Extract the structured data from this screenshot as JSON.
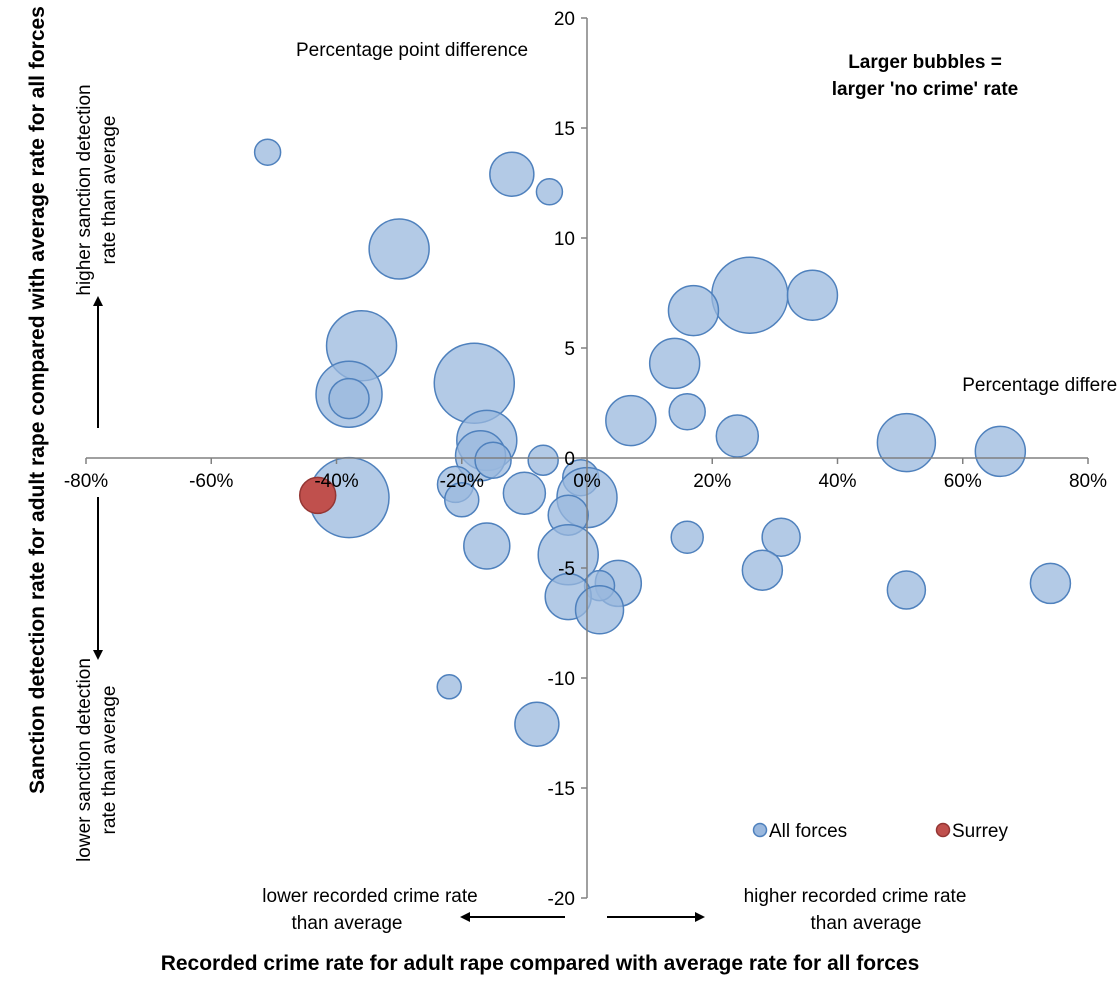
{
  "chart_data": {
    "type": "scatter",
    "variant": "bubble",
    "xlabel": "Recorded crime rate for adult rape compared with average rate for all forces",
    "ylabel": "Sanction detection rate for adult rape compared with average rate for all forces",
    "xlim": [
      -80,
      80
    ],
    "ylim": [
      -20,
      20
    ],
    "x_ticks": [
      -80,
      -60,
      -40,
      -20,
      0,
      20,
      40,
      60,
      80
    ],
    "x_tick_labels": [
      "-80%",
      "-60%",
      "-40%",
      "-20%",
      "0%",
      "20%",
      "40%",
      "60%",
      "80%"
    ],
    "y_ticks": [
      -20,
      -15,
      -10,
      -5,
      0,
      5,
      10,
      15,
      20
    ],
    "y_tick_labels": [
      "-20",
      "-15",
      "-10",
      "-5",
      "0",
      "5",
      "10",
      "15",
      "20"
    ],
    "grid": false,
    "legend_position": "bottom-right",
    "annotations": {
      "y_unit": "Percentage point difference",
      "x_unit": "Percentage difference",
      "bubble_note_line1": "Larger bubbles =",
      "bubble_note_line2": "larger 'no crime' rate",
      "upper_left_line1": "higher sanction detection",
      "upper_left_line2": "rate than average",
      "lower_left_line1": "lower sanction detection",
      "lower_left_line2": "rate than average",
      "bottom_left_line1": "lower  recorded crime rate",
      "bottom_left_line2": "than average",
      "bottom_right_line1": "higher  recorded crime rate",
      "bottom_right_line2": "than average"
    },
    "series": [
      {
        "name": "All forces",
        "color": "#9AB8DE",
        "stroke": "#4F81BD",
        "points": [
          {
            "x": -51,
            "y": 13.9,
            "size": 13
          },
          {
            "x": -12,
            "y": 12.9,
            "size": 22
          },
          {
            "x": -6,
            "y": 12.1,
            "size": 13
          },
          {
            "x": -30,
            "y": 9.5,
            "size": 30
          },
          {
            "x": 26,
            "y": 7.4,
            "size": 38
          },
          {
            "x": 36,
            "y": 7.4,
            "size": 25
          },
          {
            "x": 17,
            "y": 6.7,
            "size": 25
          },
          {
            "x": -36,
            "y": 5.1,
            "size": 35
          },
          {
            "x": 14,
            "y": 4.3,
            "size": 25
          },
          {
            "x": -18,
            "y": 3.4,
            "size": 40
          },
          {
            "x": -38,
            "y": 2.9,
            "size": 33
          },
          {
            "x": -38,
            "y": 2.7,
            "size": 20
          },
          {
            "x": 16,
            "y": 2.1,
            "size": 18
          },
          {
            "x": 7,
            "y": 1.7,
            "size": 25
          },
          {
            "x": 24,
            "y": 1.0,
            "size": 21
          },
          {
            "x": -16,
            "y": 0.8,
            "size": 30
          },
          {
            "x": 51,
            "y": 0.7,
            "size": 29
          },
          {
            "x": 66,
            "y": 0.3,
            "size": 25
          },
          {
            "x": -17,
            "y": 0.1,
            "size": 25
          },
          {
            "x": -15,
            "y": -0.1,
            "size": 18
          },
          {
            "x": -7,
            "y": -0.1,
            "size": 15
          },
          {
            "x": -1,
            "y": -0.9,
            "size": 18
          },
          {
            "x": -21,
            "y": -1.2,
            "size": 18
          },
          {
            "x": -10,
            "y": -1.6,
            "size": 21
          },
          {
            "x": -38,
            "y": -1.8,
            "size": 40
          },
          {
            "x": 0,
            "y": -1.8,
            "size": 30
          },
          {
            "x": -20,
            "y": -1.9,
            "size": 17
          },
          {
            "x": -3,
            "y": -2.6,
            "size": 20
          },
          {
            "x": 16,
            "y": -3.6,
            "size": 16
          },
          {
            "x": 31,
            "y": -3.6,
            "size": 19
          },
          {
            "x": -16,
            "y": -4.0,
            "size": 23
          },
          {
            "x": -3,
            "y": -4.4,
            "size": 30
          },
          {
            "x": 28,
            "y": -5.1,
            "size": 20
          },
          {
            "x": 5,
            "y": -5.7,
            "size": 23
          },
          {
            "x": 2,
            "y": -5.8,
            "size": 15
          },
          {
            "x": 51,
            "y": -6.0,
            "size": 19
          },
          {
            "x": 74,
            "y": -5.7,
            "size": 20
          },
          {
            "x": -3,
            "y": -6.3,
            "size": 23
          },
          {
            "x": 2,
            "y": -6.9,
            "size": 24
          },
          {
            "x": -22,
            "y": -10.4,
            "size": 12
          },
          {
            "x": -8,
            "y": -12.1,
            "size": 22
          }
        ]
      },
      {
        "name": "Surrey",
        "color": "#C0504D",
        "stroke": "#943634",
        "points": [
          {
            "x": -43,
            "y": -1.7,
            "size": 18
          }
        ]
      }
    ]
  }
}
